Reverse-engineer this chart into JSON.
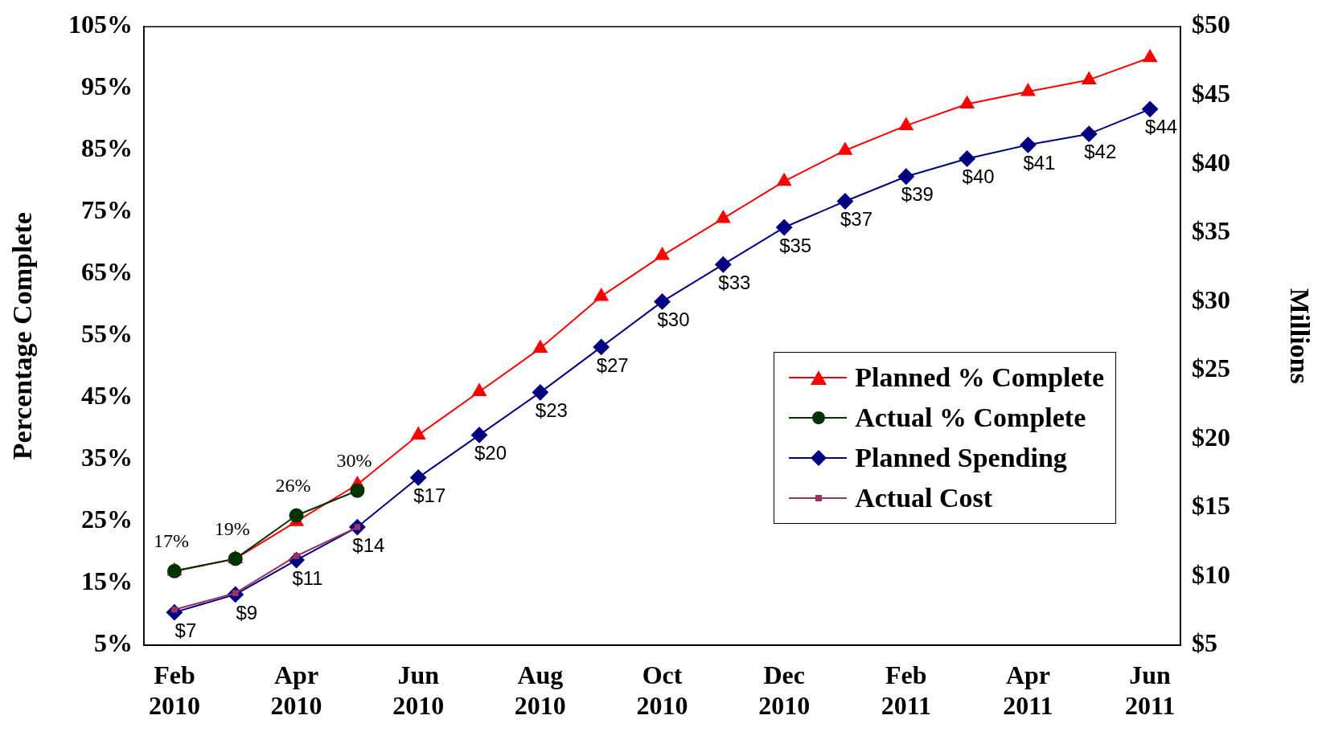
{
  "chart_data": {
    "type": "line",
    "ylabel": "Percentage Complete",
    "y2label": "Millions",
    "categories": [
      "Feb 2010",
      null,
      "Apr 2010",
      null,
      "Jun 2010",
      null,
      "Aug 2010",
      null,
      "Oct 2010",
      null,
      "Dec 2010",
      null,
      "Feb 2011",
      null,
      "Apr 2011",
      null,
      "Jun 2011"
    ],
    "ylim": [
      5,
      105
    ],
    "yticks": [
      {
        "value": 5,
        "label": "5%"
      },
      {
        "value": 15,
        "label": "15%"
      },
      {
        "value": 25,
        "label": "25%"
      },
      {
        "value": 35,
        "label": "35%"
      },
      {
        "value": 45,
        "label": "45%"
      },
      {
        "value": 55,
        "label": "55%"
      },
      {
        "value": 65,
        "label": "65%"
      },
      {
        "value": 75,
        "label": "75%"
      },
      {
        "value": 85,
        "label": "85%"
      },
      {
        "value": 95,
        "label": "95%"
      },
      {
        "value": 105,
        "label": "105%"
      }
    ],
    "y2lim": [
      5,
      50
    ],
    "y2ticks": [
      {
        "value": 5,
        "label": "$5"
      },
      {
        "value": 10,
        "label": "$10"
      },
      {
        "value": 15,
        "label": "$15"
      },
      {
        "value": 20,
        "label": "$20"
      },
      {
        "value": 25,
        "label": "$25"
      },
      {
        "value": 30,
        "label": "$30"
      },
      {
        "value": 35,
        "label": "$35"
      },
      {
        "value": 40,
        "label": "$40"
      },
      {
        "value": 45,
        "label": "$45"
      },
      {
        "value": 50,
        "label": "$50"
      }
    ],
    "grid": false,
    "legend": "right",
    "series": [
      {
        "name": "Planned % Complete",
        "color": "#ff0000",
        "marker": "triangle",
        "axis": "y",
        "values": [
          17,
          19,
          25,
          31,
          39,
          46,
          53,
          61.4,
          68,
          74,
          80,
          85,
          89,
          92.5,
          94.5,
          96.4,
          100
        ]
      },
      {
        "name": "Actual % Complete",
        "color": "#003300",
        "marker": "circle",
        "axis": "y",
        "values": [
          17,
          19,
          26,
          30,
          null,
          null,
          null,
          null,
          null,
          null,
          null,
          null,
          null,
          null,
          null,
          null,
          null
        ],
        "value_labels": [
          "17%",
          "19%",
          "26%",
          "30%",
          null,
          null,
          null,
          null,
          null,
          null,
          null,
          null,
          null,
          null,
          null,
          null,
          null
        ]
      },
      {
        "name": "Planned Spending",
        "color": "#000080",
        "marker": "diamond",
        "axis": "y2",
        "values": [
          7.4,
          8.7,
          11.2,
          13.6,
          17.2,
          20.3,
          23.4,
          26.7,
          30,
          32.7,
          35.4,
          37.3,
          39.1,
          40.4,
          41.4,
          42.2,
          44
        ],
        "value_labels": [
          "$7",
          "$9",
          "$11",
          "$14",
          "$17",
          "$20",
          "$23",
          "$27",
          "$30",
          "$33",
          "$35",
          "$37",
          "$39",
          "$40",
          "$41",
          "$42",
          "$44"
        ]
      },
      {
        "name": "Actual Cost",
        "color": "#993366",
        "marker": "square",
        "axis": "y2",
        "values": [
          7.6,
          8.8,
          11.5,
          13.6,
          null,
          null,
          null,
          null,
          null,
          null,
          null,
          null,
          null,
          null,
          null,
          null,
          null
        ]
      }
    ]
  }
}
